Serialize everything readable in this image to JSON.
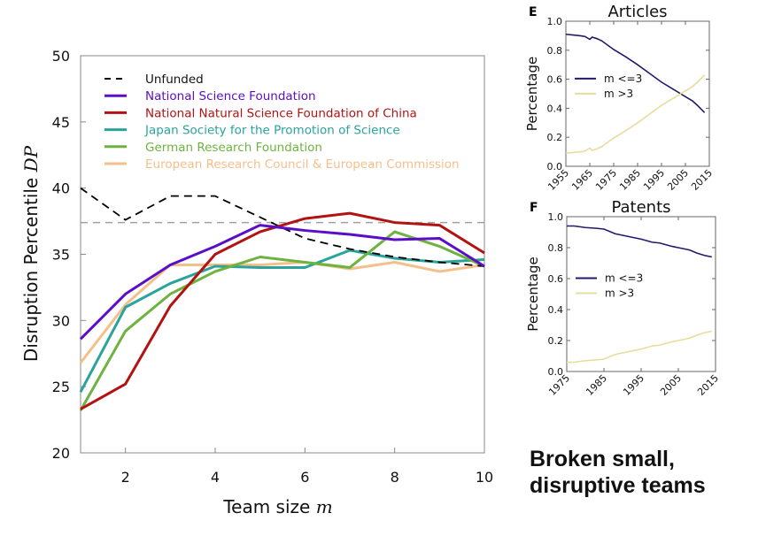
{
  "chart_data": [
    {
      "id": "main",
      "type": "line",
      "title": "",
      "xlabel": "Team size m",
      "ylabel": "Disruption Percentile DP",
      "x": [
        1,
        2,
        3,
        4,
        5,
        6,
        7,
        8,
        9,
        10
      ],
      "xlim": [
        1,
        10
      ],
      "ylim": [
        20,
        50
      ],
      "xticks": [
        2,
        4,
        6,
        8,
        10
      ],
      "yticks": [
        20,
        25,
        30,
        35,
        40,
        45,
        50
      ],
      "grid": false,
      "legend_position": "top-left",
      "reference_line": {
        "y": 37.4,
        "style": "dashed",
        "color": "#a0a0a0"
      },
      "series": [
        {
          "name": "Unfunded",
          "color": "#000000",
          "style": "dashed",
          "values": [
            40.0,
            37.6,
            39.4,
            39.4,
            37.8,
            36.2,
            35.4,
            34.8,
            34.4,
            34.1
          ]
        },
        {
          "name": "National Science Foundation",
          "color": "#5b0ec7",
          "style": "solid",
          "values": [
            28.6,
            32.0,
            34.2,
            35.6,
            37.2,
            36.8,
            36.5,
            36.1,
            36.2,
            34.1
          ]
        },
        {
          "name": "National Natural Science Foundation of China",
          "color": "#b31212",
          "style": "solid",
          "values": [
            23.3,
            25.2,
            31.1,
            35.0,
            36.7,
            37.7,
            38.1,
            37.4,
            37.2,
            35.1
          ]
        },
        {
          "name": "Japan Society for the Promotion of Science",
          "color": "#2aa39c",
          "style": "solid",
          "values": [
            24.6,
            31.0,
            32.8,
            34.1,
            34.0,
            34.0,
            35.3,
            34.7,
            34.4,
            34.6
          ]
        },
        {
          "name": "German Research Foundation",
          "color": "#6db33f",
          "style": "solid",
          "values": [
            23.2,
            29.2,
            32.0,
            33.7,
            34.8,
            34.4,
            34.0,
            36.7,
            35.6,
            34.1
          ]
        },
        {
          "name": "European Research Council & European Commission",
          "color": "#f5bf8a",
          "style": "solid",
          "values": [
            26.8,
            31.2,
            34.2,
            34.2,
            34.2,
            34.4,
            33.9,
            34.4,
            33.7,
            34.2
          ]
        }
      ]
    },
    {
      "id": "E",
      "panel_label": "E",
      "type": "line",
      "title": "Articles",
      "xlabel": "",
      "ylabel": "Percentage",
      "xlim": [
        1955,
        2015
      ],
      "ylim": [
        0.0,
        1.0
      ],
      "xticks": [
        "1955",
        "1965",
        "1975",
        "1985",
        "1995",
        "2005",
        "2015"
      ],
      "yticks": [
        "0.0",
        "0.2",
        "0.4",
        "0.6",
        "0.8",
        "1.0"
      ],
      "legend_position": "center-left",
      "x": [
        1955,
        1958,
        1961,
        1963,
        1965,
        1966,
        1968,
        1970,
        1975,
        1980,
        1985,
        1990,
        1995,
        2000,
        2005,
        2008,
        2010,
        2013
      ],
      "series": [
        {
          "name": "m <=3",
          "color": "#1f1a6b",
          "values": [
            0.91,
            0.905,
            0.9,
            0.895,
            0.875,
            0.89,
            0.88,
            0.865,
            0.805,
            0.755,
            0.7,
            0.64,
            0.58,
            0.53,
            0.48,
            0.45,
            0.42,
            0.37
          ]
        },
        {
          "name": "m >3",
          "color": "#e6dc9c",
          "values": [
            0.09,
            0.095,
            0.1,
            0.105,
            0.125,
            0.11,
            0.12,
            0.135,
            0.195,
            0.245,
            0.3,
            0.36,
            0.42,
            0.47,
            0.52,
            0.55,
            0.58,
            0.63
          ]
        }
      ]
    },
    {
      "id": "F",
      "panel_label": "F",
      "type": "line",
      "title": "Patents",
      "xlabel": "",
      "ylabel": "Percentage",
      "xlim": [
        1975,
        2015
      ],
      "ylim": [
        0.0,
        1.0
      ],
      "xticks": [
        "1975",
        "1985",
        "1995",
        "2005",
        "2015"
      ],
      "yticks": [
        "0.0",
        "0.2",
        "0.4",
        "0.6",
        "0.8",
        "1.0"
      ],
      "legend_position": "center-left",
      "x": [
        1975,
        1977,
        1980,
        1983,
        1985,
        1988,
        1990,
        1993,
        1995,
        1998,
        2000,
        2003,
        2005,
        2008,
        2010,
        2012,
        2014
      ],
      "series": [
        {
          "name": "m <=3",
          "color": "#1f1a6b",
          "values": [
            0.94,
            0.94,
            0.93,
            0.925,
            0.92,
            0.89,
            0.88,
            0.865,
            0.855,
            0.835,
            0.83,
            0.81,
            0.8,
            0.785,
            0.765,
            0.75,
            0.74
          ]
        },
        {
          "name": "m >3",
          "color": "#e6dc9c",
          "values": [
            0.06,
            0.06,
            0.07,
            0.075,
            0.08,
            0.11,
            0.12,
            0.135,
            0.145,
            0.165,
            0.17,
            0.19,
            0.2,
            0.215,
            0.235,
            0.25,
            0.26
          ]
        }
      ]
    }
  ],
  "caption": {
    "line1": "Broken small,",
    "line2": "disruptive teams"
  }
}
